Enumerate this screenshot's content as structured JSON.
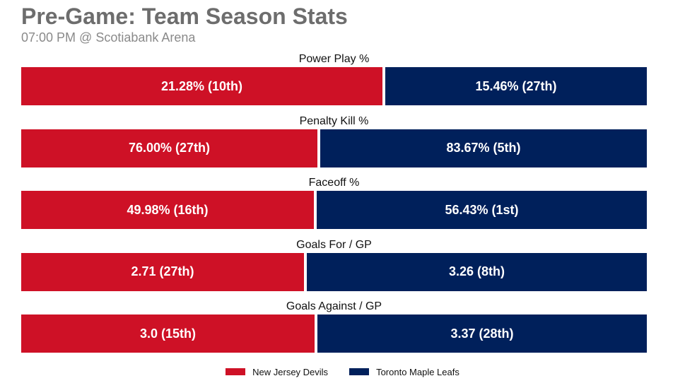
{
  "title": "Pre-Game: Team Season Stats",
  "subtitle": "07:00 PM @ Scotiabank Arena",
  "chart_data": {
    "type": "bar",
    "orientation": "horizontal-stacked-100",
    "title": "Pre-Game: Team Season Stats",
    "subtitle": "07:00 PM @ Scotiabank Arena",
    "categories": [
      "Power Play %",
      "Penalty Kill %",
      "Faceoff %",
      "Goals For / GP",
      "Goals Against / GP"
    ],
    "series": [
      {
        "name": "New Jersey Devils",
        "color": "#ce1126",
        "values": [
          21.28,
          76.0,
          49.98,
          2.71,
          3.0
        ],
        "labels": [
          "21.28% (10th)",
          "76.00% (27th)",
          "49.98% (16th)",
          "2.71 (27th)",
          "3.0 (15th)"
        ]
      },
      {
        "name": "Toronto Maple Leafs",
        "color": "#00205b",
        "values": [
          15.46,
          83.67,
          56.43,
          3.26,
          3.37
        ],
        "labels": [
          "15.46% (27th)",
          "83.67% (5th)",
          "56.43% (1st)",
          "3.26 (8th)",
          "3.37 (28th)"
        ]
      }
    ],
    "grid": false,
    "legend_position": "bottom-center"
  }
}
